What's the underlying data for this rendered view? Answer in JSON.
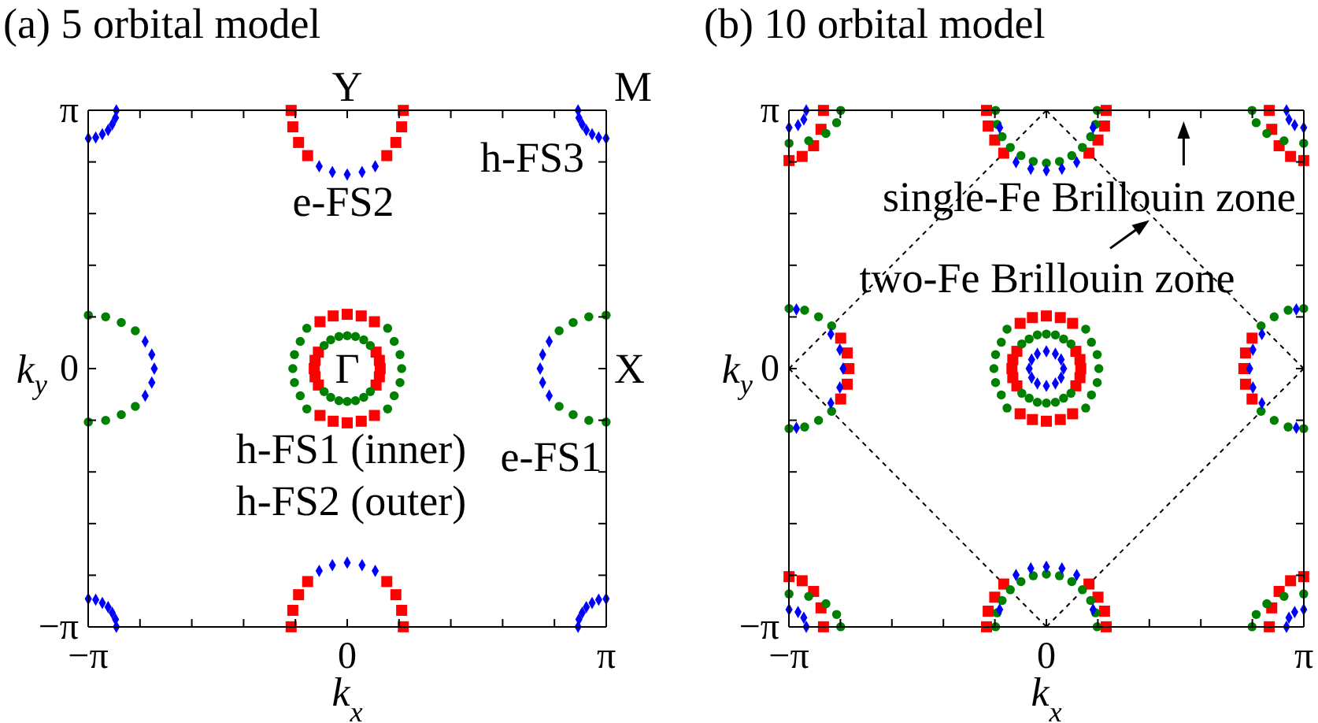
{
  "chart_data": [
    {
      "type": "scatter",
      "title": "(a) 5 orbital model",
      "xlabel": "k$_{x}$",
      "ylabel": "k$_{y}$",
      "xlim": [
        -3.1416,
        3.1416
      ],
      "ylim": [
        -3.1416,
        3.1416
      ],
      "xticks": [
        {
          "value": -3.1416,
          "label": "−π"
        },
        {
          "value": -2.5133,
          "label": null
        },
        {
          "value": -1.885,
          "label": null
        },
        {
          "value": -1.2566,
          "label": null
        },
        {
          "value": -0.6283,
          "label": null
        },
        0,
        {
          "value": 0.6283,
          "label": null
        },
        {
          "value": 1.2566,
          "label": null
        },
        {
          "value": 1.885,
          "label": null
        },
        {
          "value": 2.5133,
          "label": null
        },
        {
          "value": 3.1416,
          "label": "π"
        }
      ],
      "yticks": [
        {
          "value": -3.1416,
          "label": "−π"
        },
        {
          "value": -2.5133,
          "label": null
        },
        {
          "value": -1.885,
          "label": null
        },
        {
          "value": -1.2566,
          "label": null
        },
        {
          "value": -0.6283,
          "label": null
        },
        0,
        {
          "value": 0.6283,
          "label": null
        },
        {
          "value": 1.2566,
          "label": null
        },
        {
          "value": 1.885,
          "label": null
        },
        {
          "value": 2.5133,
          "label": null
        },
        {
          "value": 3.1416,
          "label": "π"
        }
      ],
      "annotations": [
        "Y",
        "M",
        "X",
        "Γ",
        "e-FS2",
        "h-FS3",
        "h-FS1 (inner)",
        "h-FS2 (outer)",
        "e-FS1"
      ],
      "series": [
        {
          "color": "#ff0000",
          "marker": "square",
          "x": [
            0.4,
            0.39,
            0.35,
            0.35,
            0.39,
            -0.35,
            -0.39,
            -0.4,
            -0.39,
            -0.35,
            0.33,
            0.17,
            0,
            -0.17,
            -0.33,
            -0.33,
            -0.17,
            0,
            0.17,
            0.33,
            -0.68,
            -0.66,
            -0.59,
            -0.48,
            0.48,
            0.59,
            0.66,
            0.68,
            -0.68,
            -0.66,
            -0.59,
            -0.48,
            0.48,
            0.59,
            0.66,
            0.68
          ],
          "values": [
            0,
            0.1,
            0.2,
            -0.2,
            -0.1,
            0.2,
            0.1,
            0,
            -0.1,
            -0.2,
            0.57,
            0.64,
            0.66,
            0.64,
            0.57,
            -0.57,
            -0.64,
            -0.66,
            -0.64,
            -0.57,
            3.14,
            2.94,
            2.75,
            2.59,
            2.59,
            2.75,
            2.94,
            3.14,
            -3.14,
            -2.94,
            -2.75,
            -2.59,
            -2.59,
            -2.75,
            -2.94,
            -3.14
          ]
        },
        {
          "color": "#008000",
          "marker": "circle",
          "x": [
            0.28,
            0.2,
            0.1,
            0,
            -0.1,
            -0.2,
            -0.28,
            -0.28,
            -0.2,
            -0.1,
            0,
            0.1,
            0.2,
            0.28,
            0.66,
            0.64,
            0.57,
            0.49,
            0.64,
            0.57,
            0.49,
            -0.66,
            -0.64,
            -0.57,
            -0.49,
            -0.64,
            -0.57,
            -0.49,
            3.14,
            2.93,
            2.74,
            2.57,
            2.57,
            2.74,
            2.93,
            3.14,
            -3.14,
            -2.93,
            -2.74,
            -2.57,
            -2.57,
            -2.74,
            -2.93,
            -3.14
          ],
          "values": [
            0.28,
            0.35,
            0.39,
            0.4,
            0.39,
            0.35,
            0.28,
            -0.28,
            -0.35,
            -0.39,
            -0.4,
            -0.39,
            -0.35,
            -0.28,
            0,
            0.17,
            0.33,
            0.49,
            -0.17,
            -0.33,
            -0.49,
            0,
            0.17,
            0.33,
            0.49,
            -0.17,
            -0.33,
            -0.49,
            -0.65,
            -0.63,
            -0.56,
            -0.46,
            0.46,
            0.56,
            0.63,
            0.65,
            -0.65,
            -0.63,
            -0.56,
            -0.46,
            0.46,
            0.56,
            0.63,
            0.65
          ]
        },
        {
          "color": "#0000ff",
          "marker": "diamond",
          "x": [
            -0.34,
            -0.18,
            0,
            0.18,
            0.34,
            -0.34,
            -0.18,
            0,
            0.18,
            0.34,
            2.45,
            2.37,
            2.34,
            2.37,
            2.45,
            -2.45,
            -2.37,
            -2.34,
            -2.37,
            -2.45,
            -2.8,
            -2.81,
            -2.85,
            -2.9,
            -2.97,
            -3.05,
            -3.14,
            2.8,
            2.81,
            2.85,
            2.9,
            2.97,
            3.05,
            3.14,
            -2.8,
            -2.81,
            -2.85,
            -2.9,
            -2.97,
            -3.05,
            -3.14,
            2.8,
            2.81,
            2.85,
            2.9,
            2.97,
            3.05,
            3.14
          ],
          "values": [
            2.46,
            2.39,
            2.36,
            2.39,
            2.46,
            -2.46,
            -2.39,
            -2.36,
            -2.39,
            -2.46,
            -0.33,
            -0.17,
            0,
            0.17,
            0.33,
            -0.33,
            -0.17,
            0,
            0.17,
            0.33,
            3.14,
            3.05,
            2.97,
            2.9,
            2.85,
            2.81,
            2.8,
            3.14,
            3.05,
            2.97,
            2.9,
            2.85,
            2.81,
            2.8,
            -3.14,
            -3.05,
            -2.97,
            -2.9,
            -2.85,
            -2.81,
            -2.8,
            -3.14,
            -3.05,
            -2.97,
            -2.9,
            -2.85,
            -2.81,
            -2.8
          ]
        }
      ]
    },
    {
      "type": "scatter",
      "title": "(b) 10 orbital model",
      "xlabel": "k$_{x}$",
      "ylabel": "k$_{y}$",
      "xlim": [
        -3.1416,
        3.1416
      ],
      "ylim": [
        -3.1416,
        3.1416
      ],
      "xticks": [
        {
          "value": -3.1416,
          "label": "−π"
        },
        {
          "value": -2.5133,
          "label": null
        },
        {
          "value": -1.885,
          "label": null
        },
        {
          "value": -1.2566,
          "label": null
        },
        {
          "value": -0.6283,
          "label": null
        },
        0,
        {
          "value": 0.6283,
          "label": null
        },
        {
          "value": 1.2566,
          "label": null
        },
        {
          "value": 1.885,
          "label": null
        },
        {
          "value": 2.5133,
          "label": null
        },
        {
          "value": 3.1416,
          "label": "π"
        }
      ],
      "yticks": [
        {
          "value": -3.1416,
          "label": "−π"
        },
        {
          "value": -2.5133,
          "label": null
        },
        {
          "value": -1.885,
          "label": null
        },
        {
          "value": -1.2566,
          "label": null
        },
        {
          "value": -0.6283,
          "label": null
        },
        0,
        {
          "value": 0.6283,
          "label": null
        },
        {
          "value": 1.2566,
          "label": null
        },
        {
          "value": 1.885,
          "label": null
        },
        {
          "value": 2.5133,
          "label": null
        },
        {
          "value": 3.1416,
          "label": "π"
        }
      ],
      "annotations": [
        "single-Fe Brillouin zone",
        "two-Fe Brillouin zone"
      ],
      "series": [
        {
          "type": "line",
          "color": "#000000",
          "marker": "none",
          "line_style": "dashed",
          "x": [
            0,
            3.14
          ],
          "values": [
            3.14,
            0
          ]
        },
        {
          "type": "line",
          "color": "#000000",
          "marker": "none",
          "line_style": "dashed",
          "x": [
            3.14,
            0
          ],
          "values": [
            0,
            -3.14
          ]
        },
        {
          "type": "line",
          "color": "#000000",
          "marker": "none",
          "line_style": "dashed",
          "x": [
            0,
            -3.14
          ],
          "values": [
            -3.14,
            0
          ]
        },
        {
          "type": "line",
          "color": "#000000",
          "marker": "none",
          "line_style": "dashed",
          "x": [
            -3.14,
            0
          ],
          "values": [
            0,
            3.14
          ]
        },
        {
          "color": "#ff0000",
          "marker": "square",
          "x": [
            0.42,
            0.41,
            0.36,
            0.36,
            0.41,
            -0.42,
            -0.41,
            -0.36,
            -0.36,
            -0.41,
            0.32,
            0.17,
            0,
            -0.17,
            -0.32,
            0.32,
            0.17,
            0,
            -0.17,
            -0.32,
            -0.73,
            -0.71,
            -0.63,
            -0.52,
            0.52,
            0.63,
            0.71,
            0.73,
            -0.73,
            -0.71,
            -0.63,
            -0.52,
            0.52,
            0.63,
            0.71,
            0.73,
            -2.51,
            -2.43,
            -2.41,
            -2.43,
            -2.51,
            2.51,
            2.43,
            2.41,
            2.43,
            2.51,
            -2.72,
            -2.75,
            -2.84,
            -2.98,
            -3.14,
            2.72,
            2.75,
            2.84,
            2.98,
            3.14,
            -2.72,
            -2.75,
            -2.84,
            -2.98,
            -3.14,
            2.72,
            2.75,
            2.84,
            2.98,
            3.14
          ],
          "values": [
            0,
            0.11,
            0.21,
            -0.21,
            -0.11,
            0,
            0.11,
            0.21,
            -0.21,
            -0.11,
            0.55,
            0.62,
            0.64,
            0.62,
            0.55,
            -0.55,
            -0.62,
            -0.64,
            -0.62,
            -0.55,
            3.14,
            2.95,
            2.78,
            2.62,
            2.62,
            2.78,
            2.95,
            3.14,
            -3.14,
            -2.95,
            -2.78,
            -2.62,
            -2.62,
            -2.78,
            -2.95,
            -3.14,
            0.37,
            0.19,
            0,
            -0.19,
            -0.37,
            0.37,
            0.19,
            0,
            -0.19,
            -0.37,
            3.14,
            2.91,
            2.71,
            2.58,
            2.53,
            3.14,
            2.91,
            2.71,
            2.58,
            2.53,
            -3.14,
            -2.91,
            -2.71,
            -2.58,
            -2.53,
            -3.14,
            -2.91,
            -2.71,
            -2.58,
            -2.53
          ]
        },
        {
          "color": "#008000",
          "marker": "circle",
          "x": [
            0.3,
            0.21,
            0.11,
            0,
            -0.11,
            -0.21,
            -0.3,
            -0.3,
            -0.21,
            -0.11,
            0,
            0.11,
            0.21,
            0.3,
            0.64,
            0.62,
            0.55,
            0.48,
            0.62,
            0.55,
            0.48,
            -0.64,
            -0.62,
            -0.55,
            -0.48,
            -0.62,
            -0.55,
            -0.48,
            -0.62,
            -0.6,
            -0.54,
            -0.44,
            -0.31,
            -0.16,
            0,
            0.16,
            0.31,
            0.44,
            0.54,
            0.6,
            0.62,
            -0.62,
            -0.6,
            -0.54,
            -0.44,
            -0.31,
            -0.16,
            0,
            0.16,
            0.31,
            0.44,
            0.54,
            0.6,
            0.62,
            -3.14,
            -2.95,
            -2.78,
            -2.62,
            -2.62,
            -2.78,
            -2.95,
            -3.14,
            3.14,
            2.95,
            2.78,
            2.62,
            2.62,
            2.78,
            2.95,
            3.14,
            -2.51,
            -2.56,
            -2.69,
            -2.9,
            -3.14,
            2.51,
            2.56,
            2.69,
            2.9,
            3.14,
            -2.51,
            -2.56,
            -2.69,
            -2.9,
            -3.14,
            2.51,
            2.56,
            2.69,
            2.9,
            3.14
          ],
          "values": [
            0.3,
            0.36,
            0.41,
            0.42,
            0.41,
            0.36,
            0.3,
            -0.3,
            -0.36,
            -0.41,
            -0.42,
            -0.41,
            -0.36,
            -0.3,
            0,
            0.17,
            0.32,
            0.48,
            -0.17,
            -0.32,
            -0.48,
            0,
            0.17,
            0.32,
            0.48,
            -0.17,
            -0.32,
            -0.48,
            3.14,
            2.97,
            2.82,
            2.69,
            2.59,
            2.52,
            2.5,
            2.52,
            2.59,
            2.69,
            2.82,
            2.97,
            3.14,
            -3.14,
            -2.97,
            -2.82,
            -2.69,
            -2.59,
            -2.52,
            -2.5,
            -2.52,
            -2.59,
            -2.69,
            -2.82,
            -2.97,
            -3.14,
            0.73,
            0.71,
            0.63,
            0.52,
            -0.52,
            -0.63,
            -0.71,
            -0.73,
            0.73,
            0.71,
            0.63,
            0.52,
            -0.52,
            -0.63,
            -0.71,
            -0.73,
            3.14,
            2.99,
            2.86,
            2.77,
            2.74,
            3.14,
            2.99,
            2.86,
            2.77,
            2.74,
            -3.14,
            -2.99,
            -2.86,
            -2.77,
            -2.74,
            -3.14,
            -2.99,
            -2.86,
            -2.77,
            -2.74
          ]
        },
        {
          "color": "#0000ff",
          "marker": "diamond",
          "x": [
            0.21,
            0.18,
            0.11,
            0,
            -0.11,
            -0.18,
            -0.21,
            -0.18,
            -0.11,
            0,
            0.11,
            0.18,
            -0.37,
            -0.19,
            0,
            0.19,
            0.37,
            -0.37,
            -0.19,
            0,
            0.19,
            0.37,
            -0.57,
            0.57,
            -0.57,
            0.57,
            -2.48,
            -2.52,
            -2.52,
            -2.63,
            -2.63,
            -3.05,
            -3.05,
            2.48,
            2.52,
            2.52,
            2.63,
            2.63,
            3.05,
            3.05,
            -2.93,
            -2.96,
            -3.03,
            -3.14,
            2.93,
            2.96,
            3.03,
            3.14,
            -2.93,
            -2.96,
            -3.03,
            -3.14,
            2.93,
            2.96,
            3.03,
            3.14
          ],
          "values": [
            0,
            0.11,
            0.18,
            0.21,
            0.18,
            0.11,
            0,
            -0.11,
            -0.18,
            -0.21,
            -0.18,
            -0.11,
            2.51,
            2.43,
            2.41,
            2.43,
            2.51,
            -2.51,
            -2.43,
            -2.41,
            -2.43,
            -2.51,
            2.93,
            2.93,
            -2.93,
            -2.93,
            0,
            0.23,
            -0.23,
            0.42,
            -0.42,
            0.72,
            -0.72,
            0,
            0.23,
            -0.23,
            0.42,
            -0.42,
            0.72,
            -0.72,
            3.14,
            3.03,
            2.96,
            2.93,
            3.14,
            3.03,
            2.96,
            2.93,
            -3.14,
            -3.03,
            -2.96,
            -2.93,
            -3.14,
            -3.03,
            -2.96,
            -2.93
          ]
        }
      ]
    }
  ]
}
